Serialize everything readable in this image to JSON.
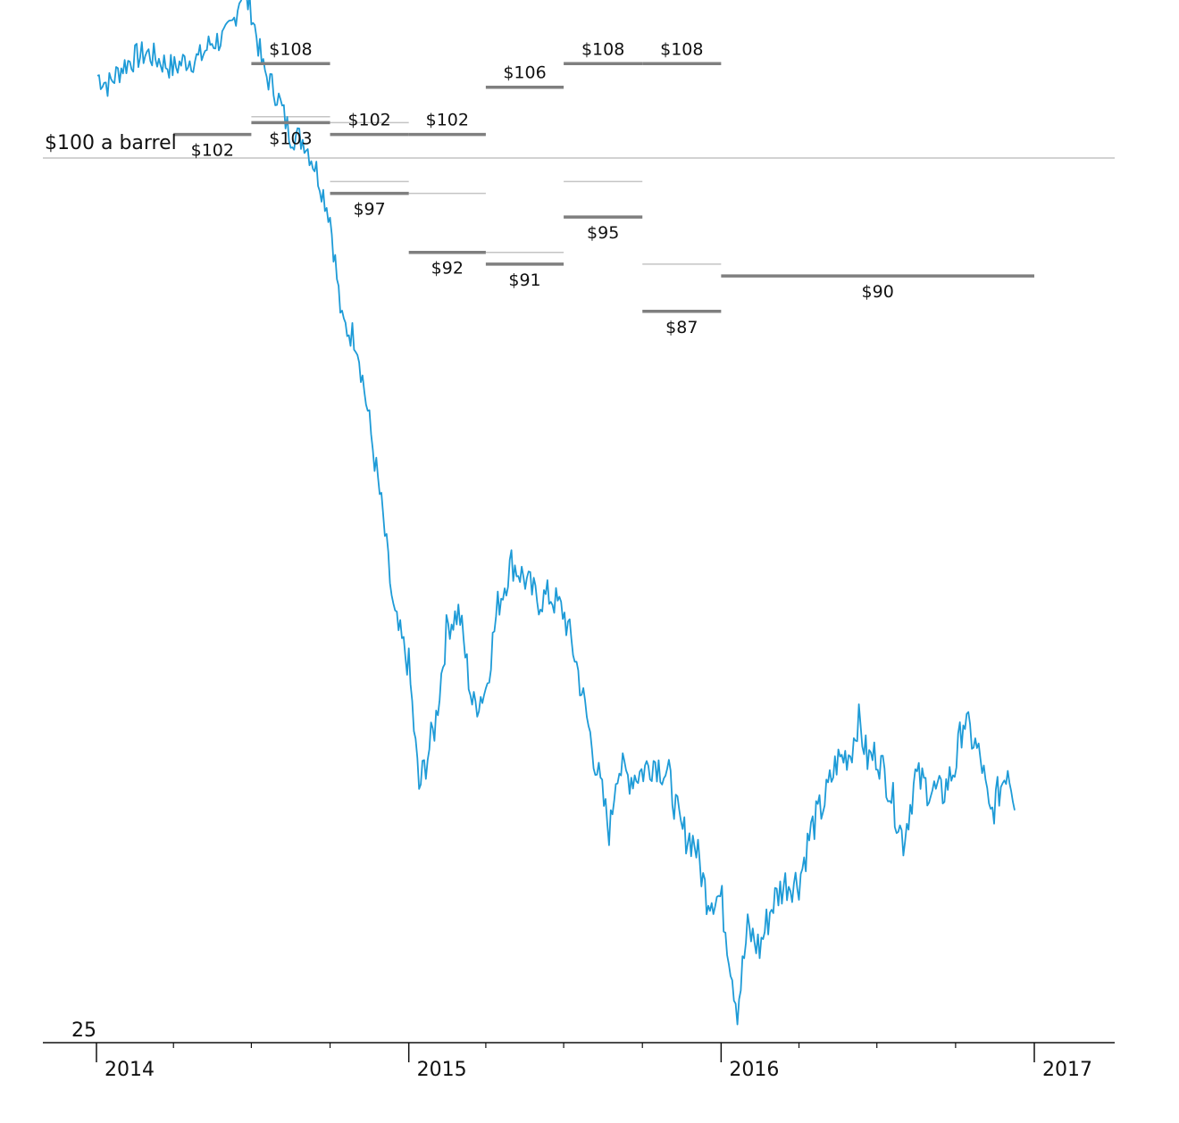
{
  "chart_data": {
    "type": "line",
    "title": "",
    "xlabel": "",
    "ylabel": "",
    "xlim": [
      "2014-01-01",
      "2017-03-15"
    ],
    "ylim": [
      25,
      115
    ],
    "x_ticks": [
      {
        "date": "2014-01-01",
        "label": "2014",
        "major": true
      },
      {
        "date": "2014-04-01",
        "label": "",
        "major": false
      },
      {
        "date": "2014-07-01",
        "label": "",
        "major": false
      },
      {
        "date": "2014-10-01",
        "label": "",
        "major": false
      },
      {
        "date": "2015-01-01",
        "label": "2015",
        "major": true
      },
      {
        "date": "2015-04-01",
        "label": "",
        "major": false
      },
      {
        "date": "2015-07-01",
        "label": "",
        "major": false
      },
      {
        "date": "2015-10-01",
        "label": "",
        "major": false
      },
      {
        "date": "2016-01-01",
        "label": "2016",
        "major": true
      },
      {
        "date": "2016-04-01",
        "label": "",
        "major": false
      },
      {
        "date": "2016-07-01",
        "label": "",
        "major": false
      },
      {
        "date": "2016-10-01",
        "label": "",
        "major": false
      },
      {
        "date": "2017-01-01",
        "label": "2017",
        "major": true
      }
    ],
    "y_axis_label": "25",
    "reference_line": {
      "value": 100,
      "label": "$100 a barrel"
    },
    "series": [
      {
        "color": "#1e9bd7",
        "points": [
          [
            "2014-01-02",
            107.0
          ],
          [
            "2014-01-15",
            106.2
          ],
          [
            "2014-02-01",
            107.8
          ],
          [
            "2014-02-15",
            108.5
          ],
          [
            "2014-03-01",
            108.9
          ],
          [
            "2014-03-15",
            108.3
          ],
          [
            "2014-04-01",
            107.6
          ],
          [
            "2014-04-15",
            108.3
          ],
          [
            "2014-05-01",
            108.4
          ],
          [
            "2014-05-15",
            109.8
          ],
          [
            "2014-06-01",
            110.2
          ],
          [
            "2014-06-10",
            111.5
          ],
          [
            "2014-06-20",
            114.3
          ],
          [
            "2014-07-01",
            112.5
          ],
          [
            "2014-07-15",
            107.5
          ],
          [
            "2014-08-01",
            105.2
          ],
          [
            "2014-08-15",
            102.0
          ],
          [
            "2014-09-01",
            101.5
          ],
          [
            "2014-09-15",
            99.0
          ],
          [
            "2014-10-01",
            95.0
          ],
          [
            "2014-10-15",
            86.0
          ],
          [
            "2014-11-01",
            84.6
          ],
          [
            "2014-11-15",
            78.0
          ],
          [
            "2014-12-01",
            70.0
          ],
          [
            "2014-12-15",
            61.0
          ],
          [
            "2015-01-01",
            57.0
          ],
          [
            "2015-01-13",
            46.5
          ],
          [
            "2015-02-01",
            52.0
          ],
          [
            "2015-02-15",
            60.4
          ],
          [
            "2015-03-01",
            61.5
          ],
          [
            "2015-03-17",
            53.4
          ],
          [
            "2015-04-01",
            55.0
          ],
          [
            "2015-04-15",
            62.0
          ],
          [
            "2015-05-01",
            65.7
          ],
          [
            "2015-05-15",
            64.5
          ],
          [
            "2015-06-01",
            62.5
          ],
          [
            "2015-06-15",
            62.9
          ],
          [
            "2015-07-01",
            61.5
          ],
          [
            "2015-07-15",
            57.5
          ],
          [
            "2015-08-01",
            51.0
          ],
          [
            "2015-08-24",
            42.7
          ],
          [
            "2015-09-01",
            48.5
          ],
          [
            "2015-09-15",
            47.5
          ],
          [
            "2015-10-01",
            48.0
          ],
          [
            "2015-10-15",
            49.0
          ],
          [
            "2015-11-01",
            47.5
          ],
          [
            "2015-11-15",
            43.0
          ],
          [
            "2015-12-01",
            42.0
          ],
          [
            "2015-12-15",
            37.5
          ],
          [
            "2016-01-01",
            37.3
          ],
          [
            "2016-01-20",
            27.9
          ],
          [
            "2016-02-01",
            34.5
          ],
          [
            "2016-02-15",
            33.0
          ],
          [
            "2016-03-01",
            36.8
          ],
          [
            "2016-03-15",
            38.5
          ],
          [
            "2016-04-01",
            38.7
          ],
          [
            "2016-04-15",
            43.0
          ],
          [
            "2016-05-01",
            45.5
          ],
          [
            "2016-05-15",
            48.8
          ],
          [
            "2016-06-01",
            49.7
          ],
          [
            "2016-06-09",
            52.5
          ],
          [
            "2016-06-20",
            49.0
          ],
          [
            "2016-07-01",
            49.5
          ],
          [
            "2016-07-15",
            46.8
          ],
          [
            "2016-08-01",
            42.1
          ],
          [
            "2016-08-15",
            47.5
          ],
          [
            "2016-09-01",
            46.5
          ],
          [
            "2016-09-15",
            46.0
          ],
          [
            "2016-10-01",
            48.5
          ],
          [
            "2016-10-10",
            52.5
          ],
          [
            "2016-10-25",
            50.0
          ],
          [
            "2016-11-01",
            48.5
          ],
          [
            "2016-11-10",
            44.0
          ],
          [
            "2016-11-25",
            47.2
          ],
          [
            "2016-12-01",
            48.5
          ],
          [
            "2016-12-10",
            45.5
          ]
        ]
      }
    ],
    "forecasts": [
      {
        "start": "2014-04-01",
        "end": "2014-07-01",
        "value": 102,
        "label": "$102",
        "label_pos": "below",
        "previous": null
      },
      {
        "start": "2014-07-01",
        "end": "2014-10-01",
        "value": 108,
        "label": "$108",
        "label_pos": "above",
        "previous": null
      },
      {
        "start": "2014-07-01",
        "end": "2014-10-01",
        "value": 103,
        "label": "$103",
        "label_pos": "below",
        "previous": 103.5
      },
      {
        "start": "2014-10-01",
        "end": "2015-01-01",
        "value": 102,
        "label": "$102",
        "label_pos": "above",
        "previous": 103
      },
      {
        "start": "2014-10-01",
        "end": "2015-01-01",
        "value": 97,
        "label": "$97",
        "label_pos": "below",
        "previous": 98
      },
      {
        "start": "2015-01-01",
        "end": "2015-04-01",
        "value": 102,
        "label": "$102",
        "label_pos": "above",
        "previous": 102
      },
      {
        "start": "2015-01-01",
        "end": "2015-04-01",
        "value": 92,
        "label": "$92",
        "label_pos": "below",
        "previous": 97
      },
      {
        "start": "2015-04-01",
        "end": "2015-07-01",
        "value": 106,
        "label": "$106",
        "label_pos": "above",
        "previous": null
      },
      {
        "start": "2015-04-01",
        "end": "2015-07-01",
        "value": 91,
        "label": "$91",
        "label_pos": "below",
        "previous": 92
      },
      {
        "start": "2015-07-01",
        "end": "2015-10-01",
        "value": 108,
        "label": "$108",
        "label_pos": "above",
        "previous": null
      },
      {
        "start": "2015-07-01",
        "end": "2015-10-01",
        "value": 95,
        "label": "$95",
        "label_pos": "below",
        "previous": 98
      },
      {
        "start": "2015-10-01",
        "end": "2016-01-01",
        "value": 108,
        "label": "$108",
        "label_pos": "above",
        "previous": null
      },
      {
        "start": "2015-10-01",
        "end": "2016-01-01",
        "value": 87,
        "label": "$87",
        "label_pos": "below",
        "previous": 91
      },
      {
        "start": "2016-01-01",
        "end": "2017-01-01",
        "value": 90,
        "label": "$90",
        "label_pos": "below",
        "previous": null
      }
    ],
    "grid": false,
    "legend": "none"
  }
}
